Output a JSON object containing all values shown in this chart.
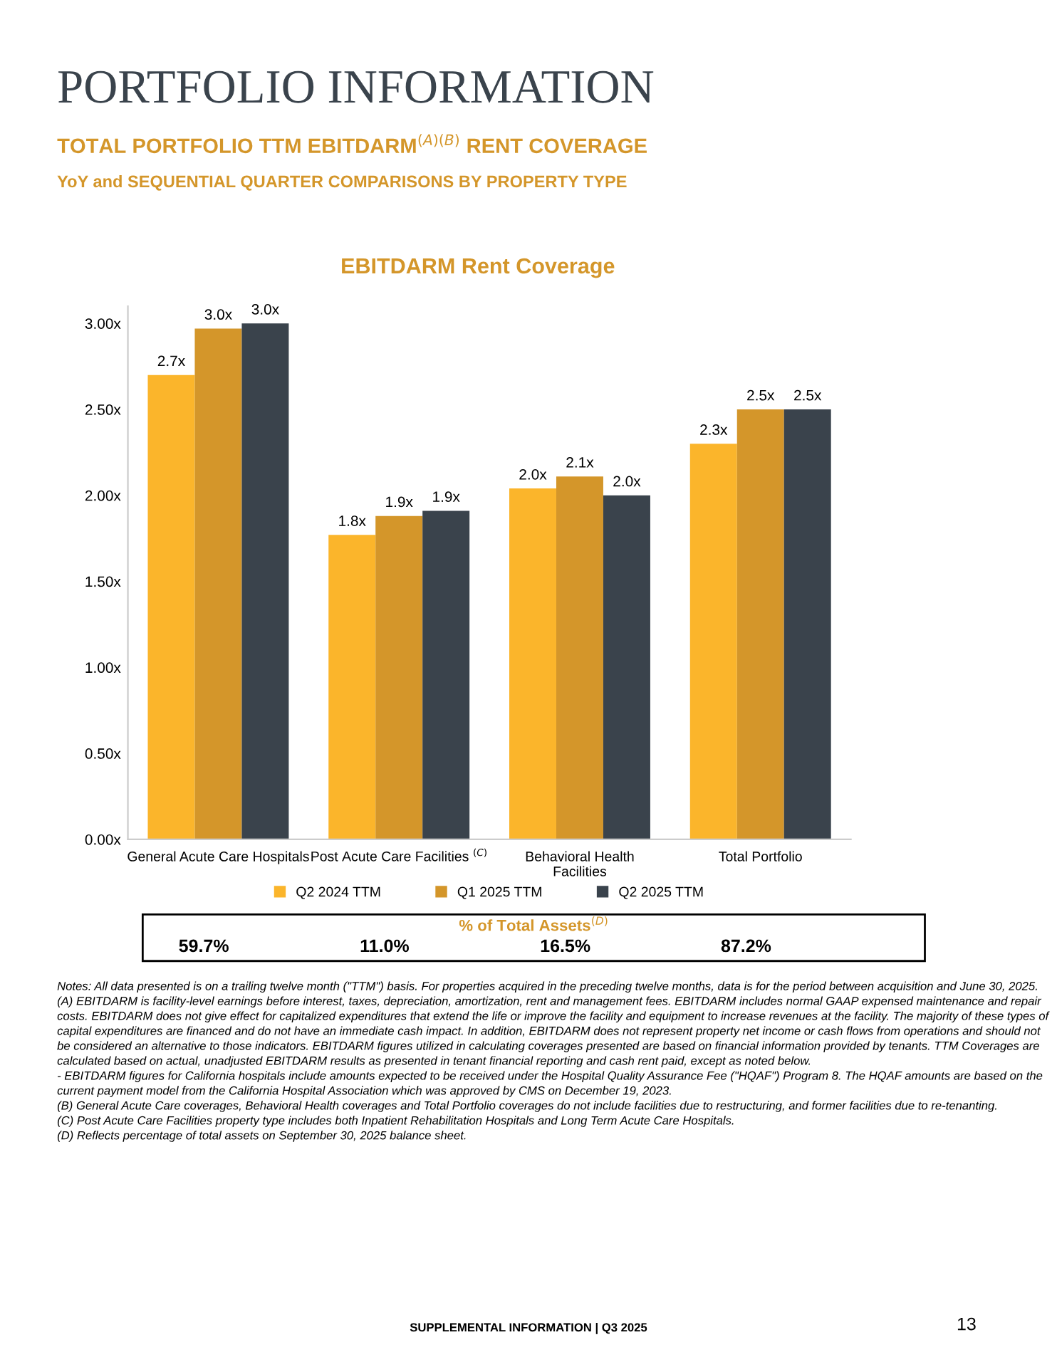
{
  "chart_data": {
    "type": "bar",
    "title": "TOTAL PORTFOLIO TTM EBITDARM$^{(A)(B)}$ RENT COVERAGE",
    "subtitle": "YoY and SEQUENTIAL QUARTER COMPARISONS BY PROPERTY TYPE",
    "categories": [
      "General Acute Care Hospitals",
      "Post Acute Care Facilities $^{(C)}$",
      "Behavioral Health\nFacilities",
      "Total Portfolio"
    ],
    "series": [
      {
        "name": "Q2 2024 TTM",
        "color": "#fbb52b",
        "values": [
          2.7,
          1.77,
          2.04,
          2.3
        ],
        "value_labels": [
          "2.7x",
          "1.8x",
          "2.0x",
          "2.3x"
        ]
      },
      {
        "name": "Q1 2025 TTM",
        "color": "#d4962a",
        "values": [
          2.97,
          1.88,
          2.11,
          2.5
        ],
        "value_labels": [
          "3.0x",
          "1.9x",
          "2.1x",
          "2.5x"
        ]
      },
      {
        "name": "Q2 2025 TTM",
        "color": "#3a434c",
        "values": [
          3.0,
          1.91,
          2.0,
          2.5
        ],
        "value_labels": [
          "3.0x",
          "1.9x",
          "2.0x",
          "2.5x"
        ]
      }
    ],
    "ylim": [
      0,
      3.1
    ],
    "yticks": [
      {
        "value": 0,
        "label": "0.00x"
      },
      {
        "value": 0.5,
        "label": "0.50x"
      },
      {
        "value": 1,
        "label": "1.00x"
      },
      {
        "value": 1.5,
        "label": "1.50x"
      },
      {
        "value": 2,
        "label": "2.00x"
      },
      {
        "value": 2.5,
        "label": "2.50x"
      },
      {
        "value": 3,
        "label": "3.00x"
      }
    ],
    "grid": false,
    "legend": "bottom",
    "annotations": [
      "PORTFOLIO INFORMATION",
      "EBITDARM Rent Coverage",
      "% of Total Assets$^{(D)}$",
      "59.7%",
      "11.0%",
      "16.5%",
      "87.2%",
      "Notes: All data presented is on a trailing twelve month (\"TTM\") basis. For properties acquired in the preceding twelve months, data is for the period between acquisition and June 30, 2025.\n(A) EBITDARM is facility-level earnings before interest, taxes, depreciation, amortization, rent and management fees. EBITDARM includes normal GAAP expensed maintenance and repair costs. EBITDARM does not give effect for capitalized expenditures that extend the life or improve the facility and equipment to increase revenues at the facility. The majority of these types of capital expenditures are financed and do not have an immediate cash impact. In addition, EBITDARM does not represent property net income or cash flows from operations and should not be considered an alternative to those indicators. EBITDARM figures utilized in calculating coverages presented are based on financial information provided by tenants. TTM Coverages are calculated based on actual, unadjusted EBITDARM results as presented in tenant financial reporting and cash rent paid, except as noted below.\n- EBITDARM figures for California hospitals include amounts expected to be received under the Hospital Quality Assurance Fee (\"HQAF\") Program 8. The HQAF amounts are based on the current payment model from the California Hospital Association which was approved by CMS on December 19, 2023.\n(B) General Acute Care coverages, Behavioral Health coverages and Total Portfolio coverages do not include facilities due to restructuring, and former facilities due to re-tenanting.\n(C) Post Acute Care Facilities property type includes both Inpatient Rehabilitation Hospitals and Long Term Acute Care Hospitals.\n(D) Reflects percentage of total assets on September 30, 2025 balance sheet.",
      "SUPPLEMENTAL INFORMATION | Q3 2025",
      "13"
    ]
  }
}
